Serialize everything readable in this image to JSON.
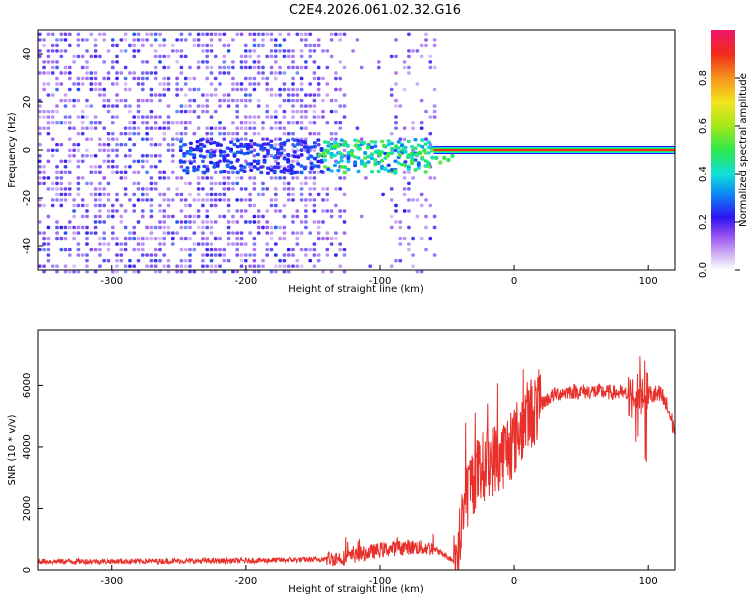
{
  "chart_data": [
    {
      "type": "heatmap",
      "title": "C2E4.2026.061.02.32.G16",
      "xlabel": "Height of straight line (km)",
      "ylabel": "Frequency (Hz)",
      "xlim": [
        -355,
        120
      ],
      "ylim": [
        -50,
        50
      ],
      "xticks": [
        -300,
        -200,
        -100,
        0,
        100
      ],
      "xtick_labels": [
        "-300",
        "-200",
        "-100",
        "0",
        "100"
      ],
      "yticks": [
        -40,
        -20,
        0,
        20,
        40
      ],
      "ytick_labels": [
        "-40",
        "-20",
        "0",
        "20",
        "40"
      ],
      "colorbar": {
        "label": "Normalized spectral amplitude",
        "range": [
          0.0,
          1.0
        ],
        "ticks": [
          0.0,
          0.2,
          0.4,
          0.6,
          0.8
        ],
        "tick_labels": [
          "0.0",
          "0.2",
          "0.4",
          "0.6",
          "0.8"
        ]
      },
      "features": {
        "noise_region_x": [
          -355,
          -60
        ],
        "gap_region_x": [
          -125,
          -95
        ],
        "signal_line_freq": 0,
        "signal_line_start_x": -60,
        "bright_cluster_x": [
          -145,
          -45
        ]
      }
    },
    {
      "type": "line",
      "title": "",
      "xlabel": "Height of straight line (km)",
      "ylabel": "SNR (10 * v/v)",
      "xlim": [
        -355,
        120
      ],
      "ylim": [
        0,
        7800
      ],
      "xticks": [
        -300,
        -200,
        -100,
        0,
        100
      ],
      "xtick_labels": [
        "-300",
        "-200",
        "-100",
        "0",
        "100"
      ],
      "yticks": [
        0,
        2000,
        4000,
        6000
      ],
      "ytick_labels": [
        "0",
        "2000",
        "4000",
        "6000"
      ],
      "color": "#e8302b",
      "series": [
        {
          "name": "SNR",
          "x": [
            -355,
            -300,
            -250,
            -200,
            -175,
            -150,
            -125,
            -110,
            -100,
            -80,
            -60,
            -45,
            -42,
            -35,
            -30,
            -20,
            -10,
            0,
            10,
            20,
            30,
            40,
            60,
            80,
            90,
            100,
            110,
            115,
            120
          ],
          "values": [
            280,
            280,
            290,
            300,
            320,
            340,
            400,
            550,
            650,
            750,
            700,
            300,
            500,
            2500,
            3000,
            3500,
            3700,
            4200,
            5000,
            5400,
            5700,
            5800,
            5800,
            5750,
            5600,
            5700,
            5650,
            5200,
            4500
          ]
        }
      ]
    }
  ]
}
